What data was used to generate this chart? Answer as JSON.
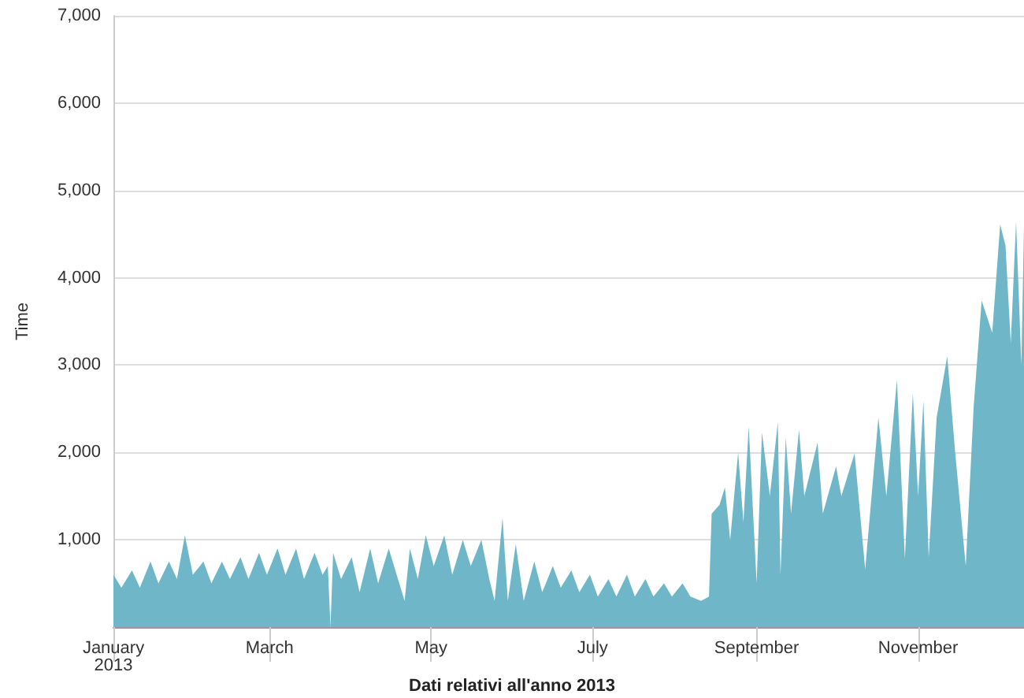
{
  "chart_data": {
    "type": "area",
    "ylabel": "Time",
    "annotations": [
      "Dati relativi all'anno 2013"
    ],
    "xlim": [
      "2013-01-01",
      "2013-12-11"
    ],
    "xticks": [
      {
        "value": "2013-01-01",
        "label": "January\n2013"
      },
      {
        "value": "2013-03-01",
        "label": "March"
      },
      {
        "value": "2013-05-01",
        "label": "May"
      },
      {
        "value": "2013-07-01",
        "label": "July"
      },
      {
        "value": "2013-09-01",
        "label": "September"
      },
      {
        "value": "2013-11-01",
        "label": "November"
      }
    ],
    "ylim": [
      0,
      7000
    ],
    "yticks": [
      {
        "value": 1000,
        "label": "1,000"
      },
      {
        "value": 2000,
        "label": "2,000"
      },
      {
        "value": 3000,
        "label": "3,000"
      },
      {
        "value": 4000,
        "label": "4,000"
      },
      {
        "value": 5000,
        "label": "5,000"
      },
      {
        "value": 6000,
        "label": "6,000"
      },
      {
        "value": 7000,
        "label": "7,000"
      }
    ],
    "grid": "y",
    "marker": "none",
    "x": [
      "2013-01-01",
      "2013-01-04",
      "2013-01-08",
      "2013-01-11",
      "2013-01-15",
      "2013-01-18",
      "2013-01-22",
      "2013-01-25",
      "2013-01-28",
      "2013-01-31",
      "2013-02-04",
      "2013-02-07",
      "2013-02-11",
      "2013-02-14",
      "2013-02-18",
      "2013-02-21",
      "2013-02-25",
      "2013-02-28",
      "2013-03-04",
      "2013-03-07",
      "2013-03-11",
      "2013-03-14",
      "2013-03-18",
      "2013-03-21",
      "2013-03-23",
      "2013-03-24",
      "2013-03-25",
      "2013-03-28",
      "2013-04-01",
      "2013-04-04",
      "2013-04-08",
      "2013-04-11",
      "2013-04-15",
      "2013-04-18",
      "2013-04-21",
      "2013-04-23",
      "2013-04-26",
      "2013-04-29",
      "2013-05-02",
      "2013-05-06",
      "2013-05-09",
      "2013-05-13",
      "2013-05-16",
      "2013-05-20",
      "2013-05-23",
      "2013-05-25",
      "2013-05-28",
      "2013-05-30",
      "2013-06-02",
      "2013-06-05",
      "2013-06-09",
      "2013-06-12",
      "2013-06-16",
      "2013-06-19",
      "2013-06-23",
      "2013-06-26",
      "2013-06-30",
      "2013-07-03",
      "2013-07-07",
      "2013-07-10",
      "2013-07-14",
      "2013-07-17",
      "2013-07-21",
      "2013-07-24",
      "2013-07-28",
      "2013-07-31",
      "2013-08-04",
      "2013-08-07",
      "2013-08-11",
      "2013-08-14",
      "2013-08-15",
      "2013-08-18",
      "2013-08-20",
      "2013-08-22",
      "2013-08-25",
      "2013-08-27",
      "2013-08-29",
      "2013-09-01",
      "2013-09-03",
      "2013-09-06",
      "2013-09-09",
      "2013-09-10",
      "2013-09-12",
      "2013-09-14",
      "2013-09-17",
      "2013-09-19",
      "2013-09-24",
      "2013-09-26",
      "2013-10-01",
      "2013-10-03",
      "2013-10-08",
      "2013-10-12",
      "2013-10-17",
      "2013-10-20",
      "2013-10-24",
      "2013-10-27",
      "2013-10-30",
      "2013-11-01",
      "2013-11-03",
      "2013-11-05",
      "2013-11-08",
      "2013-11-12",
      "2013-11-15",
      "2013-11-19",
      "2013-11-22",
      "2013-11-25",
      "2013-11-29",
      "2013-12-02",
      "2013-12-04",
      "2013-12-06",
      "2013-12-08",
      "2013-12-10",
      "2013-12-11"
    ],
    "series": [
      {
        "color": "#6fb7c8",
        "values": [
          600,
          450,
          650,
          450,
          750,
          500,
          750,
          550,
          1050,
          600,
          750,
          500,
          750,
          550,
          800,
          550,
          850,
          600,
          900,
          600,
          900,
          550,
          850,
          600,
          700,
          0,
          850,
          550,
          800,
          400,
          900,
          500,
          900,
          600,
          300,
          900,
          550,
          1050,
          700,
          1050,
          600,
          1000,
          700,
          1000,
          550,
          300,
          1250,
          300,
          950,
          300,
          750,
          400,
          700,
          450,
          650,
          400,
          600,
          350,
          550,
          350,
          600,
          350,
          550,
          350,
          500,
          350,
          500,
          350,
          300,
          350,
          1300,
          1400,
          1600,
          1000,
          2000,
          1200,
          2300,
          500,
          2230,
          1500,
          2350,
          600,
          2170,
          1300,
          2260,
          1500,
          2110,
          1300,
          1840,
          1500,
          1990,
          660,
          2400,
          1500,
          2830,
          780,
          2680,
          1500,
          2590,
          800,
          2400,
          3100,
          2000,
          700,
          2530,
          3740,
          3370,
          4610,
          4370,
          3250,
          4640,
          3000,
          4600
        ]
      }
    ]
  }
}
